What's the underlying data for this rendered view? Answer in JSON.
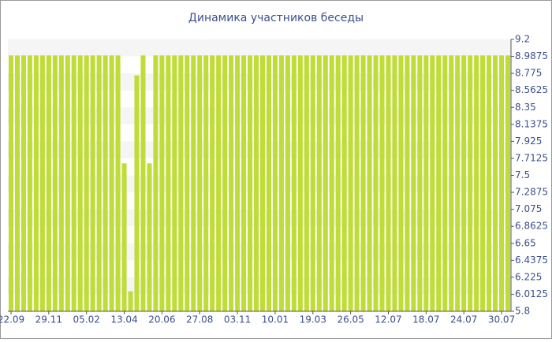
{
  "chart_data": {
    "type": "bar",
    "title": "Динамика участников беседы",
    "categories": [
      "22.09",
      null,
      null,
      null,
      null,
      null,
      "29.11",
      null,
      null,
      null,
      null,
      null,
      "05.02",
      null,
      null,
      null,
      null,
      null,
      "13.04",
      null,
      null,
      null,
      null,
      null,
      "20.06",
      null,
      null,
      null,
      null,
      null,
      "27.08",
      null,
      null,
      null,
      null,
      null,
      "03.11",
      null,
      null,
      null,
      null,
      null,
      "10.01",
      null,
      null,
      null,
      null,
      null,
      "19.03",
      null,
      null,
      null,
      null,
      null,
      "26.05",
      null,
      null,
      null,
      null,
      null,
      "12.07",
      null,
      null,
      null,
      null,
      null,
      "18.07",
      null,
      null,
      null,
      null,
      null,
      "24.07",
      null,
      null,
      null,
      null,
      null,
      "30.07",
      null
    ],
    "values": [
      9,
      9,
      9,
      9,
      9,
      9,
      9,
      9,
      9,
      9,
      9,
      9,
      9,
      9,
      9,
      9,
      9,
      9,
      7.65,
      6.05,
      8.75,
      9,
      7.65,
      9,
      9,
      9,
      9,
      9,
      9,
      9,
      9,
      9,
      9,
      9,
      9,
      9,
      9,
      9,
      9,
      9,
      9,
      9,
      9,
      9,
      9,
      9,
      9,
      9,
      9,
      9,
      9,
      9,
      9,
      9,
      9,
      9,
      9,
      9,
      9,
      9,
      9,
      9,
      9,
      9,
      9,
      9,
      9,
      9,
      9,
      9,
      9,
      9,
      9,
      9,
      9,
      9,
      9,
      9,
      9,
      9
    ],
    "color": "#c0dc38",
    "ylim": [
      5.8,
      9.2
    ],
    "yticks": [
      9.2,
      8.9875,
      8.775,
      8.5625,
      8.35,
      8.1375,
      7.925,
      7.7125,
      7.5,
      7.2875,
      7.075,
      6.8625,
      6.65,
      6.4375,
      6.225,
      6.0125,
      5.8
    ],
    "grid": true
  }
}
